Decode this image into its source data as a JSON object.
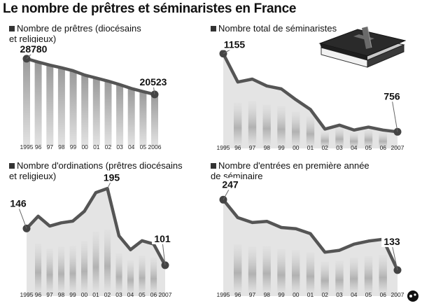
{
  "title": "Le nombre de prêtres et séminaristes en France",
  "colors": {
    "line": "#555555",
    "marker": "#444444",
    "fill_light": "#e4e4e4",
    "bar_dark": "#9a9a9a",
    "bar_light": "#e2e2e2",
    "label_bg": "#ffffff",
    "legend_square": "#333333"
  },
  "icons": [
    "bible-with-cross-icon",
    "publisher-logo-icon"
  ],
  "chart_data": [
    {
      "type": "bar",
      "title_line1": "Nombre de prêtres (diocésains",
      "title_line2": "et religieux)",
      "categories": [
        "1995",
        "96",
        "97",
        "98",
        "99",
        "00",
        "01",
        "02",
        "03",
        "04",
        "05",
        "2006"
      ],
      "values": [
        28780,
        28000,
        27300,
        26700,
        26000,
        25000,
        24300,
        23600,
        22800,
        21900,
        21200,
        20523
      ],
      "value_labels": [
        {
          "index": 0,
          "text": "28780"
        },
        {
          "index": 11,
          "text": "20523"
        }
      ],
      "ylim": [
        10000,
        32000
      ]
    },
    {
      "type": "area",
      "title_line1": "Nombre total de séminaristes",
      "title_line2": "",
      "categories": [
        "1995",
        "96",
        "97",
        "98",
        "99",
        "00",
        "01",
        "02",
        "03",
        "04",
        "05",
        "06",
        "2007"
      ],
      "values": [
        1155,
        1010,
        1025,
        990,
        975,
        920,
        870,
        770,
        790,
        765,
        780,
        765,
        756
      ],
      "value_labels": [
        {
          "index": 0,
          "text": "1155"
        },
        {
          "index": 12,
          "text": "756"
        }
      ],
      "ylim": [
        700,
        1200
      ]
    },
    {
      "type": "area",
      "title_line1": "Nombre d'ordinations (prêtres diocésains",
      "title_line2": "et religieux)",
      "categories": [
        "1995",
        "96",
        "97",
        "98",
        "99",
        "00",
        "01",
        "02",
        "03",
        "04",
        "05",
        "06",
        "2007"
      ],
      "values": [
        146,
        161,
        149,
        153,
        155,
        167,
        190,
        195,
        137,
        120,
        131,
        127,
        101
      ],
      "value_labels": [
        {
          "index": 0,
          "text": "146"
        },
        {
          "index": 7,
          "text": "195"
        },
        {
          "index": 12,
          "text": "101"
        }
      ],
      "ylim": [
        70,
        215
      ]
    },
    {
      "type": "area",
      "title_line1": "Nombre d'entrées en première année",
      "title_line2": "de séminaire",
      "categories": [
        "1995",
        "96",
        "97",
        "98",
        "99",
        "00",
        "01",
        "02",
        "03",
        "04",
        "05",
        "06",
        "2007"
      ],
      "values": [
        247,
        218,
        210,
        212,
        202,
        200,
        192,
        162,
        165,
        175,
        180,
        183,
        133
      ],
      "value_labels": [
        {
          "index": 0,
          "text": "247"
        },
        {
          "index": 12,
          "text": "133"
        }
      ],
      "ylim": [
        100,
        270
      ]
    }
  ]
}
